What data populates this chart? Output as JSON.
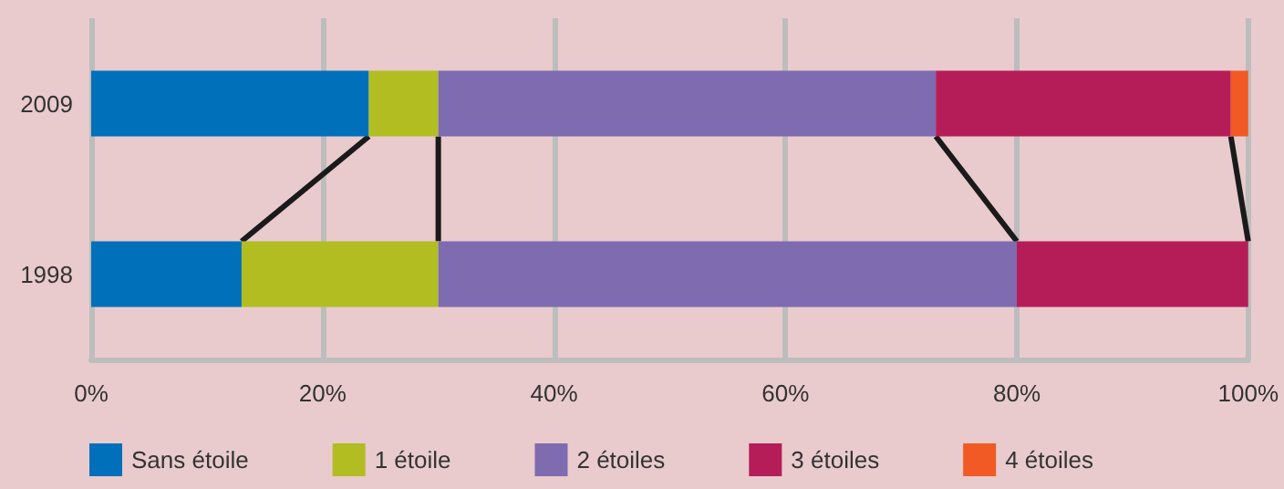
{
  "chart_data": {
    "type": "bar",
    "orientation": "horizontal",
    "stacked": true,
    "categories": [
      "2009",
      "1998"
    ],
    "series": [
      {
        "name": "Sans étoile",
        "color": "#0070bb",
        "values": [
          24,
          13
        ]
      },
      {
        "name": "1 étoile",
        "color": "#b2bd22",
        "values": [
          6,
          17
        ]
      },
      {
        "name": "2 étoiles",
        "color": "#7e6bb0",
        "values": [
          43,
          50
        ]
      },
      {
        "name": "3 étoiles",
        "color": "#b51d58",
        "values": [
          25.5,
          20
        ]
      },
      {
        "name": "4 étoiles",
        "color": "#f15a24",
        "values": [
          1.5,
          0
        ]
      }
    ],
    "xlim": [
      0,
      100
    ],
    "xticks": [
      {
        "value": 0,
        "label": "0%"
      },
      {
        "value": 20,
        "label": "20%"
      },
      {
        "value": 40,
        "label": "40%"
      },
      {
        "value": 60,
        "label": "60%"
      },
      {
        "value": 80,
        "label": "80%"
      },
      {
        "value": 100,
        "label": "100%"
      }
    ],
    "grid": "x",
    "legend": "bottom left"
  }
}
